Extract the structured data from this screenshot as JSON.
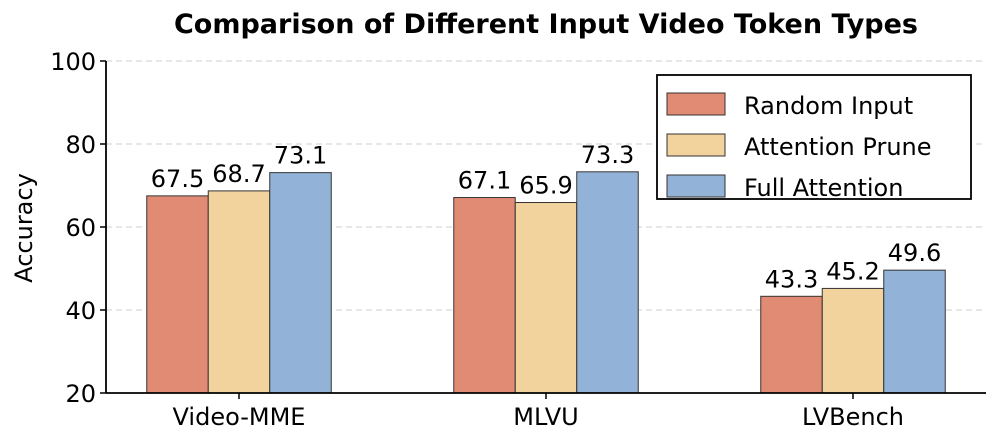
{
  "chart_data": {
    "type": "bar",
    "title": "Comparison of Different Input Video Token Types",
    "xlabel": "",
    "ylabel": "Accuracy",
    "ylim": [
      20,
      100
    ],
    "yticks": [
      "20",
      "40",
      "60",
      "80",
      "100"
    ],
    "categories": [
      "Video-MME",
      "MLVU",
      "LVBench"
    ],
    "series": [
      {
        "name": "Random Input",
        "values": [
          67.5,
          67.1,
          43.3
        ],
        "labels": [
          "67.5",
          "67.1",
          "43.3"
        ],
        "color": "#E28B74"
      },
      {
        "name": "Attention Prune",
        "values": [
          68.7,
          65.9,
          45.2
        ],
        "labels": [
          "68.7",
          "65.9",
          "45.2"
        ],
        "color": "#F2D39E"
      },
      {
        "name": "Full Attention",
        "values": [
          73.1,
          73.3,
          49.6
        ],
        "labels": [
          "73.1",
          "73.3",
          "49.6"
        ],
        "color": "#93B2D7"
      }
    ],
    "grid": "y-dashed",
    "legend_position": "top-right"
  }
}
